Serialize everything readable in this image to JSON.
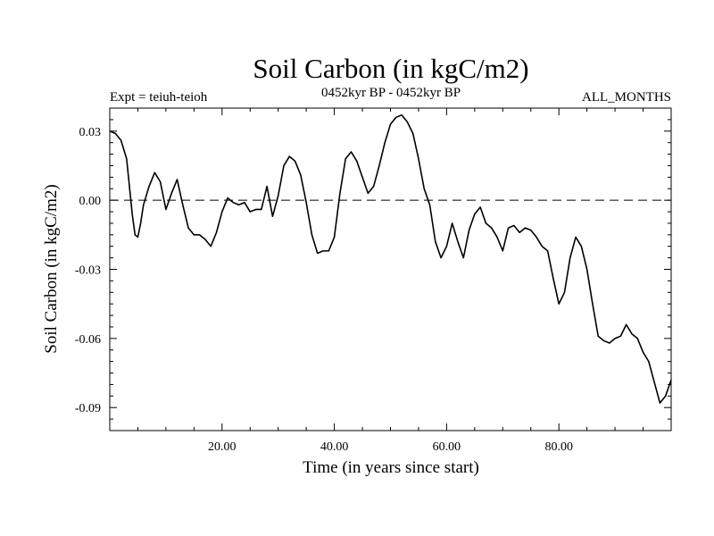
{
  "chart_data": {
    "type": "line",
    "title": "Soil Carbon (in kgC/m2)",
    "subtitle_left": "Expt = teiuh-teioh",
    "subtitle_center": "0452kyr BP - 0452kyr BP",
    "subtitle_right": "ALL_MONTHS",
    "xlabel": "Time (in years since start)",
    "ylabel": "Soil Carbon (in kgC/m2)",
    "xlim": [
      0,
      100
    ],
    "ylim": [
      -0.1,
      0.04
    ],
    "xticks": [
      20,
      40,
      60,
      80
    ],
    "xtick_labels": [
      "20.00",
      "40.00",
      "60.00",
      "80.00"
    ],
    "yticks": [
      -0.09,
      -0.06,
      -0.03,
      0.0,
      0.03
    ],
    "ytick_labels": [
      "-0.09",
      "-0.06",
      "-0.03",
      "0.00",
      "0.03"
    ],
    "reference_line": {
      "y": 0.0,
      "style": "dashed"
    },
    "grid": false,
    "line_color": "#000000",
    "series": [
      {
        "x": [
          0,
          1,
          2,
          3,
          4,
          4.5,
          5,
          5.5,
          6,
          7,
          8,
          9,
          10,
          11,
          12,
          13,
          14,
          15,
          16,
          17,
          18,
          19,
          20,
          21,
          22,
          23,
          24,
          25,
          26,
          27,
          28,
          29,
          30,
          31,
          32,
          33,
          34,
          35,
          36,
          37,
          38,
          39,
          40,
          41,
          42,
          43,
          44,
          45,
          46,
          47,
          48,
          49,
          50,
          51,
          52,
          53,
          54,
          55,
          56,
          57,
          58,
          59,
          60,
          61,
          62,
          63,
          64,
          65,
          66,
          67,
          68,
          69,
          70,
          71,
          72,
          73,
          74,
          75,
          76,
          77,
          78,
          79,
          80,
          81,
          82,
          83,
          84,
          85,
          86,
          87,
          88,
          89,
          90,
          91,
          92,
          93,
          94,
          95,
          96,
          97,
          98,
          99,
          100
        ],
        "values": [
          0.03,
          0.029,
          0.026,
          0.018,
          -0.006,
          -0.015,
          -0.016,
          -0.01,
          -0.002,
          0.006,
          0.012,
          0.008,
          -0.004,
          0.003,
          0.009,
          -0.002,
          -0.012,
          -0.015,
          -0.015,
          -0.017,
          -0.02,
          -0.014,
          -0.005,
          0.001,
          -0.001,
          -0.002,
          -0.001,
          -0.005,
          -0.004,
          -0.004,
          0.006,
          -0.007,
          0.002,
          0.015,
          0.019,
          0.017,
          0.011,
          -0.001,
          -0.015,
          -0.023,
          -0.022,
          -0.022,
          -0.016,
          0.003,
          0.018,
          0.021,
          0.017,
          0.01,
          0.003,
          0.006,
          0.015,
          0.025,
          0.033,
          0.036,
          0.037,
          0.034,
          0.029,
          0.018,
          0.005,
          -0.002,
          -0.018,
          -0.025,
          -0.02,
          -0.01,
          -0.018,
          -0.025,
          -0.013,
          -0.006,
          -0.003,
          -0.01,
          -0.012,
          -0.016,
          -0.022,
          -0.012,
          -0.011,
          -0.014,
          -0.012,
          -0.013,
          -0.016,
          -0.02,
          -0.022,
          -0.034,
          -0.045,
          -0.04,
          -0.025,
          -0.016,
          -0.02,
          -0.03,
          -0.045,
          -0.059,
          -0.061,
          -0.062,
          -0.06,
          -0.059,
          -0.054,
          -0.058,
          -0.06,
          -0.066,
          -0.07,
          -0.079,
          -0.088,
          -0.085,
          -0.078
        ]
      }
    ]
  }
}
